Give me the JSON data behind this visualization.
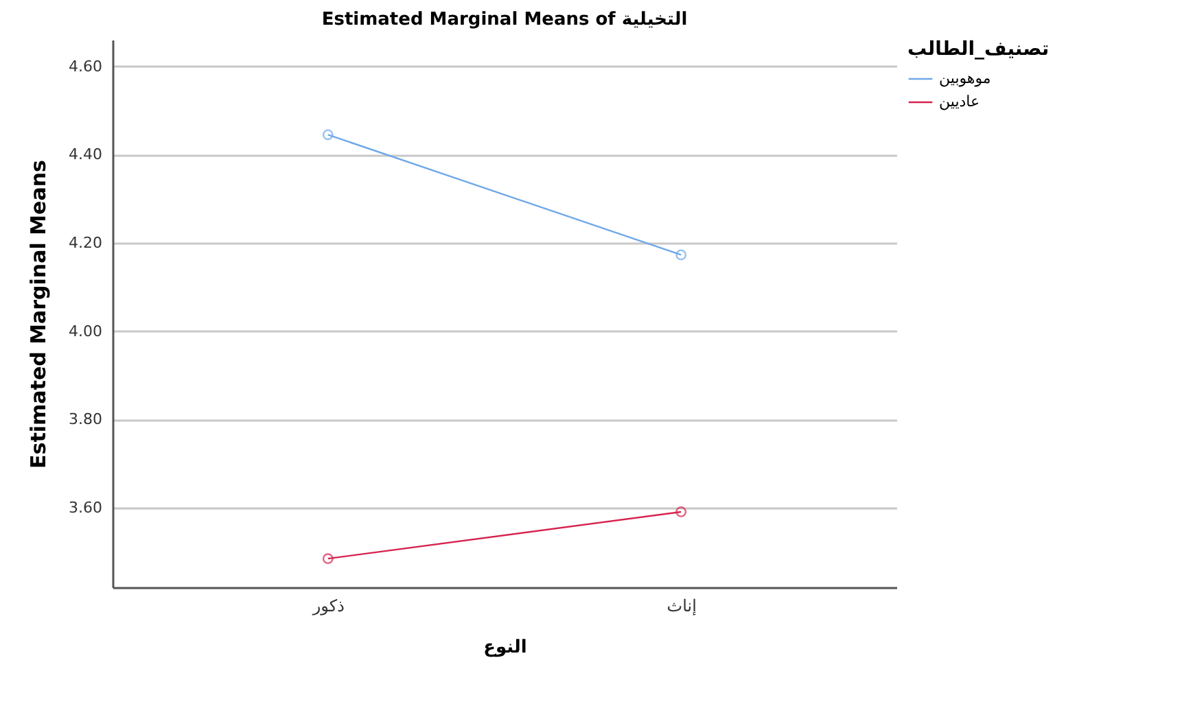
{
  "chart_data": {
    "type": "line",
    "title": "Estimated Marginal Means of التخيلية",
    "xlabel": "النوع",
    "ylabel": "Estimated Marginal Means",
    "legend_title": "تصنيف_الطالب",
    "categories": [
      "ذكور",
      "إناث"
    ],
    "series": [
      {
        "name": "موهوبين",
        "color": "#6fa8e8",
        "values": [
          4.445,
          4.173
        ]
      },
      {
        "name": "عاديين",
        "color": "#d6234f",
        "values": [
          3.485,
          3.591
        ]
      }
    ],
    "ylim": [
      3.42,
      4.66
    ],
    "yticks": [
      {
        "value": 3.6,
        "label": "3.60"
      },
      {
        "value": 3.8,
        "label": "3.80"
      },
      {
        "value": 4.0,
        "label": "4.00"
      },
      {
        "value": 4.2,
        "label": "4.20"
      },
      {
        "value": 4.4,
        "label": "4.40"
      },
      {
        "value": 4.6,
        "label": "4.60"
      }
    ],
    "grid": "y",
    "legend": "top right",
    "marker": "circle",
    "line_style": "solid"
  }
}
